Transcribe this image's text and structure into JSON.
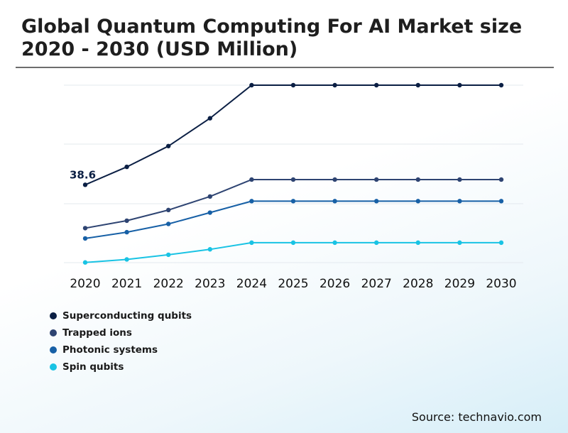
{
  "title": "Global Quantum Computing For AI Market size 2020 - 2030 (USD Million)",
  "source": "Source: technavio.com",
  "chart_data": {
    "type": "line",
    "title": "Global Quantum Computing For AI Market size 2020 - 2030 (USD Million)",
    "xlabel": "",
    "ylabel": "",
    "x": [
      "2020",
      "2021",
      "2022",
      "2023",
      "2024",
      "2025",
      "2026",
      "2027",
      "2028",
      "2029",
      "2030"
    ],
    "series": [
      {
        "name": "Superconducting qubits",
        "color": "#0b1f44",
        "values": [
          38.6,
          47.5,
          57.8,
          71.6,
          88,
          88,
          88,
          88,
          88,
          88,
          88
        ]
      },
      {
        "name": "Trapped ions",
        "color": "#2e4472",
        "values": [
          17.1,
          20.8,
          26.1,
          32.8,
          41.2,
          41.2,
          41.2,
          41.2,
          41.2,
          41.2,
          41.2
        ]
      },
      {
        "name": "Photonic systems",
        "color": "#1760a6",
        "values": [
          12.0,
          15.1,
          19.2,
          24.8,
          30.5,
          30.5,
          30.5,
          30.5,
          30.5,
          30.5,
          30.5
        ]
      },
      {
        "name": "Spin qubits",
        "color": "#19c3e4",
        "values": [
          0.1,
          1.6,
          3.9,
          6.6,
          9.9,
          9.9,
          9.9,
          9.9,
          9.9,
          9.9,
          9.9
        ]
      }
    ],
    "annotations": [
      {
        "series": 0,
        "index": 0,
        "text": "38.6"
      }
    ],
    "ylim": [
      0,
      88
    ],
    "grid": true,
    "legend": "bottom-left"
  }
}
